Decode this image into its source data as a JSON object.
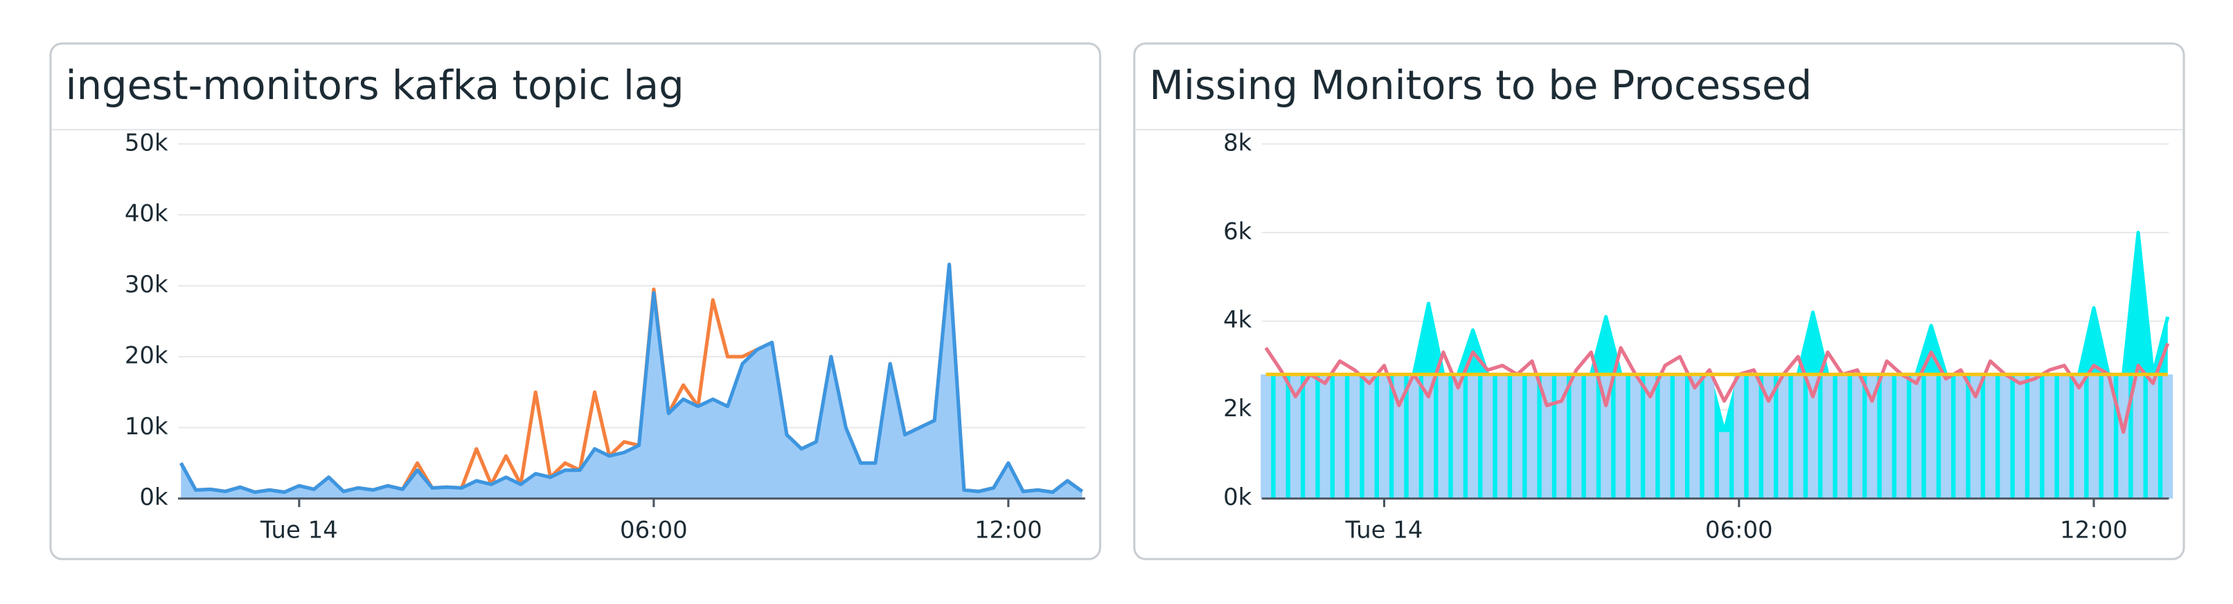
{
  "chart_data": [
    {
      "type": "line",
      "title": "ingest-monitors kafka topic lag",
      "x": [
        -2,
        -1.75,
        -1.5,
        -1.25,
        -1,
        -0.75,
        -0.5,
        -0.25,
        0,
        0.25,
        0.5,
        0.75,
        1,
        1.25,
        1.5,
        1.75,
        2,
        2.25,
        2.5,
        2.75,
        3,
        3.25,
        3.5,
        3.75,
        4,
        4.25,
        4.5,
        4.75,
        5,
        5.25,
        5.5,
        5.75,
        6,
        6.25,
        6.5,
        6.75,
        7,
        7.25,
        7.5,
        7.75,
        8,
        8.25,
        8.5,
        8.75,
        9,
        9.25,
        9.5,
        9.75,
        10,
        10.25,
        10.5,
        10.75,
        11,
        11.25,
        11.5,
        11.75,
        12,
        12.25,
        12.5,
        12.75,
        13,
        13.25
      ],
      "xlim": [
        -2.05,
        13.3
      ],
      "xticks": [
        {
          "value": 0,
          "label": "Tue 14"
        },
        {
          "value": 6,
          "label": "06:00"
        },
        {
          "value": 12,
          "label": "12:00"
        }
      ],
      "ylim": [
        0,
        50000
      ],
      "yticks": [
        {
          "value": 0,
          "label": "0k"
        },
        {
          "value": 10000,
          "label": "10k"
        },
        {
          "value": 20000,
          "label": "20k"
        },
        {
          "value": 30000,
          "label": "30k"
        },
        {
          "value": 40000,
          "label": "40k"
        },
        {
          "value": 50000,
          "label": "50k"
        }
      ],
      "grid": true,
      "series": [
        {
          "type": "line",
          "color": "#f5803e",
          "values": [
            5000,
            1200,
            1300,
            1000,
            1600,
            900,
            1200,
            900,
            1800,
            1300,
            3000,
            1000,
            1500,
            1200,
            1800,
            1300,
            5000,
            1500,
            1600,
            1500,
            7000,
            2000,
            6000,
            2000,
            15000,
            3000,
            5000,
            4000,
            15000,
            6000,
            8000,
            7500,
            29500,
            12000,
            16000,
            13000,
            28000,
            20000,
            20000,
            21000,
            22000,
            9000,
            7000,
            8000,
            20000,
            10000,
            5000,
            5000,
            19000,
            9000,
            10000,
            11000,
            33000,
            1200,
            1000,
            1500,
            5000,
            1000,
            1200,
            900,
            2500,
            1000
          ]
        },
        {
          "type": "area",
          "color": "#3d96e0",
          "fill": "#9ccaf7",
          "values": [
            5000,
            1200,
            1300,
            1000,
            1600,
            900,
            1200,
            900,
            1800,
            1300,
            3000,
            1000,
            1500,
            1200,
            1800,
            1300,
            4000,
            1500,
            1600,
            1500,
            2500,
            2000,
            3000,
            2000,
            3500,
            3000,
            4000,
            4000,
            7000,
            6000,
            6500,
            7500,
            29000,
            12000,
            14000,
            13000,
            14000,
            13000,
            19000,
            21000,
            22000,
            9000,
            7000,
            8000,
            20000,
            10000,
            5000,
            5000,
            19000,
            9000,
            10000,
            11000,
            33000,
            1200,
            1000,
            1500,
            5000,
            1000,
            1200,
            900,
            2500,
            1000
          ]
        }
      ]
    },
    {
      "type": "line",
      "title": "Missing Monitors to be Processed",
      "x": [
        -2,
        -1.75,
        -1.5,
        -1.25,
        -1,
        -0.75,
        -0.5,
        -0.25,
        0,
        0.25,
        0.5,
        0.75,
        1,
        1.25,
        1.5,
        1.75,
        2,
        2.25,
        2.5,
        2.75,
        3,
        3.25,
        3.5,
        3.75,
        4,
        4.25,
        4.5,
        4.75,
        5,
        5.25,
        5.5,
        5.75,
        6,
        6.25,
        6.5,
        6.75,
        7,
        7.25,
        7.5,
        7.75,
        8,
        8.25,
        8.5,
        8.75,
        9,
        9.25,
        9.5,
        9.75,
        10,
        10.25,
        10.5,
        10.75,
        11,
        11.25,
        11.5,
        11.75,
        12,
        12.25,
        12.5,
        12.75,
        13,
        13.25
      ],
      "xlim": [
        -2.07,
        13.27
      ],
      "xticks": [
        {
          "value": 0,
          "label": "Tue 14"
        },
        {
          "value": 6,
          "label": "06:00"
        },
        {
          "value": 12,
          "label": "12:00"
        }
      ],
      "ylim": [
        0,
        8000
      ],
      "yticks": [
        {
          "value": 0,
          "label": "0k"
        },
        {
          "value": 2000,
          "label": "2k"
        },
        {
          "value": 4000,
          "label": "4k"
        },
        {
          "value": 6000,
          "label": "6k"
        },
        {
          "value": 8000,
          "label": "8k"
        }
      ],
      "grid": true,
      "series": [
        {
          "type": "area",
          "color": "#00eef0",
          "fill": "#00eef0",
          "values": [
            2800,
            2800,
            2800,
            2800,
            2800,
            2800,
            2800,
            2800,
            2800,
            2800,
            2800,
            4400,
            2800,
            2800,
            3800,
            2800,
            2800,
            2800,
            2800,
            2800,
            2800,
            2800,
            2800,
            4100,
            2800,
            2800,
            2800,
            2800,
            2800,
            2800,
            2800,
            1500,
            2800,
            2800,
            2800,
            2800,
            2800,
            4200,
            2800,
            2800,
            2800,
            2800,
            2800,
            2800,
            2800,
            3900,
            2800,
            2800,
            2800,
            2800,
            2800,
            2800,
            2800,
            2800,
            2800,
            2800,
            4300,
            2800,
            2800,
            6000,
            2800,
            4100
          ]
        },
        {
          "type": "bar",
          "color": "#a9d3f8",
          "values": [
            2800,
            2800,
            2800,
            2800,
            2800,
            2800,
            2800,
            2800,
            2800,
            2800,
            2800,
            2800,
            2800,
            2800,
            2800,
            2800,
            2800,
            2800,
            2800,
            2800,
            2800,
            2800,
            2800,
            2800,
            2800,
            2800,
            2800,
            2800,
            2800,
            2800,
            2800,
            1500,
            2800,
            2800,
            2800,
            2800,
            2800,
            2800,
            2800,
            2800,
            2800,
            2800,
            2800,
            2800,
            2800,
            2800,
            2800,
            2800,
            2800,
            2800,
            2800,
            2800,
            2800,
            2800,
            2800,
            2800,
            2800,
            2800,
            2800,
            2800,
            2800,
            2800
          ]
        },
        {
          "type": "line",
          "color": "#e8738c",
          "values": [
            3400,
            2900,
            2300,
            2800,
            2600,
            3100,
            2900,
            2600,
            3000,
            2100,
            2800,
            2300,
            3300,
            2500,
            3300,
            2900,
            3000,
            2800,
            3100,
            2100,
            2200,
            2900,
            3300,
            2100,
            3400,
            2800,
            2300,
            3000,
            3200,
            2500,
            2900,
            2200,
            2800,
            2900,
            2200,
            2800,
            3200,
            2300,
            3300,
            2800,
            2900,
            2200,
            3100,
            2800,
            2600,
            3300,
            2700,
            2900,
            2300,
            3100,
            2800,
            2600,
            2700,
            2900,
            3000,
            2500,
            3000,
            2800,
            1500,
            3000,
            2600,
            3500
          ]
        },
        {
          "type": "line",
          "color": "#f5c518",
          "values": [
            2800,
            2800,
            2800,
            2800,
            2800,
            2800,
            2800,
            2800,
            2800,
            2800,
            2800,
            2800,
            2800,
            2800,
            2800,
            2800,
            2800,
            2800,
            2800,
            2800,
            2800,
            2800,
            2800,
            2800,
            2800,
            2800,
            2800,
            2800,
            2800,
            2800,
            2800,
            2800,
            2800,
            2800,
            2800,
            2800,
            2800,
            2800,
            2800,
            2800,
            2800,
            2800,
            2800,
            2800,
            2800,
            2800,
            2800,
            2800,
            2800,
            2800,
            2800,
            2800,
            2800,
            2800,
            2800,
            2800,
            2800,
            2800,
            2800,
            2800,
            2800,
            2800
          ]
        }
      ]
    }
  ]
}
